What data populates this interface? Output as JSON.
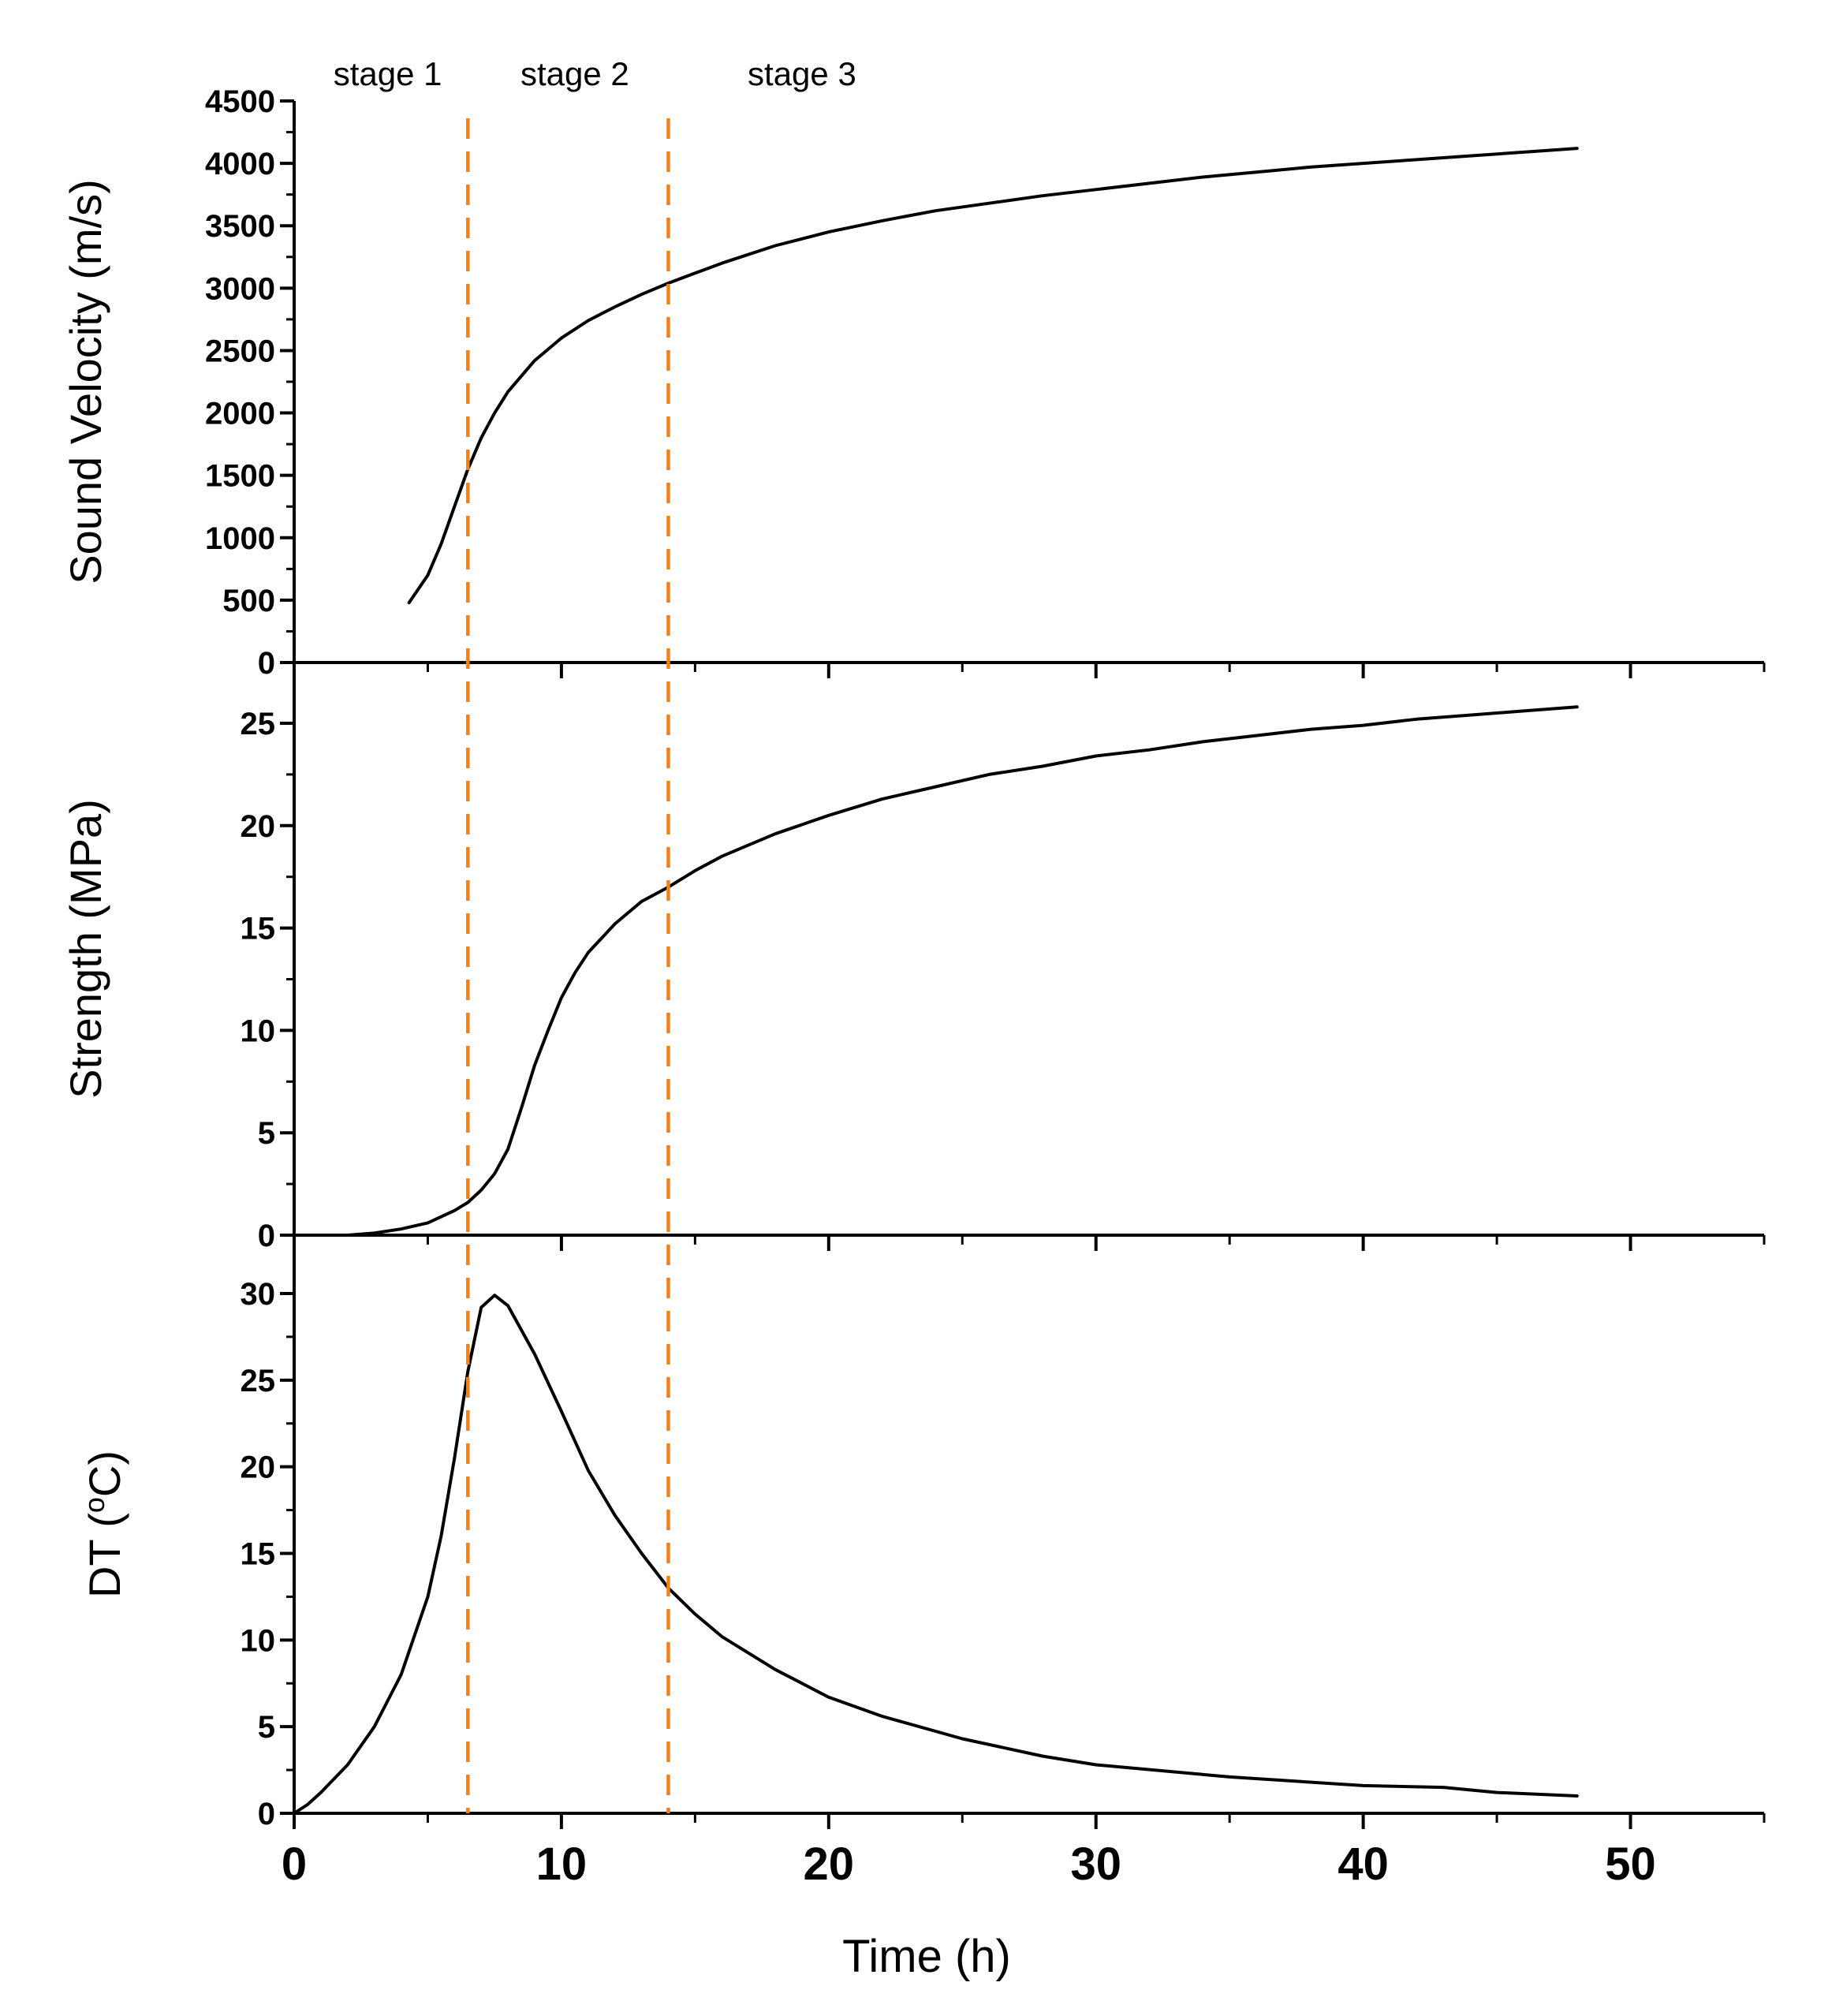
{
  "chart_data": {
    "type": "line",
    "x_shared": {
      "label": "Time (h)",
      "range": [
        0,
        55
      ],
      "ticks": [
        0,
        10,
        20,
        30,
        40,
        50
      ]
    },
    "stage_dividers": [
      {
        "x": 6.5,
        "color": "#ff7f0e"
      },
      {
        "x": 14,
        "color": "#ff7f0e"
      }
    ],
    "stage_labels": [
      {
        "text": "stage 1",
        "x": 3.5
      },
      {
        "text": "stage 2",
        "x": 10.5
      },
      {
        "text": "stage 3",
        "x": 19.0
      }
    ],
    "panels": [
      {
        "ylabel": "Sound Velocity (m/s)",
        "ylim": [
          0,
          4500
        ],
        "yticks": [
          0,
          500,
          1000,
          1500,
          2000,
          2500,
          3000,
          3500,
          4000,
          4500
        ],
        "series": [
          {
            "name": "Sound Velocity",
            "x": [
              4.3,
              5,
              5.5,
              6,
              6.5,
              7,
              7.5,
              8,
              9,
              10,
              11,
              12,
              13,
              14,
              15,
              16,
              18,
              20,
              22,
              24,
              26,
              28,
              30,
              32,
              34,
              36,
              38,
              40,
              42,
              44,
              46,
              48
            ],
            "y": [
              480,
              700,
              950,
              1250,
              1550,
              1800,
              2000,
              2170,
              2420,
              2600,
              2740,
              2850,
              2950,
              3040,
              3120,
              3200,
              3340,
              3450,
              3540,
              3620,
              3680,
              3740,
              3790,
              3840,
              3890,
              3930,
              3970,
              4000,
              4030,
              4060,
              4090,
              4120
            ]
          }
        ]
      },
      {
        "ylabel": "Strength (MPa)",
        "ylim": [
          0,
          27
        ],
        "yticks": [
          0,
          5,
          10,
          15,
          20,
          25
        ],
        "series": [
          {
            "name": "Strength",
            "x": [
              2,
              3,
              4,
              5,
              6,
              6.5,
              7,
              7.5,
              8,
              8.5,
              9,
              9.5,
              10,
              10.5,
              11,
              12,
              13,
              14,
              15,
              16,
              18,
              20,
              22,
              24,
              26,
              28,
              30,
              32,
              34,
              36,
              38,
              40,
              42,
              44,
              46,
              48
            ],
            "y": [
              0,
              0.1,
              0.3,
              0.6,
              1.2,
              1.6,
              2.2,
              3.0,
              4.2,
              6.2,
              8.3,
              10.0,
              11.6,
              12.8,
              13.8,
              15.2,
              16.3,
              17.0,
              17.8,
              18.5,
              19.6,
              20.5,
              21.3,
              21.9,
              22.5,
              22.9,
              23.4,
              23.7,
              24.1,
              24.4,
              24.7,
              24.9,
              25.2,
              25.4,
              25.6,
              25.8
            ]
          }
        ]
      },
      {
        "ylabel": "DT (°C)",
        "ylabel_parts": [
          "DT (",
          "o",
          "C)"
        ],
        "ylim": [
          0,
          32
        ],
        "yticks": [
          0,
          5,
          10,
          15,
          20,
          25,
          30
        ],
        "series": [
          {
            "name": "DT",
            "x": [
              0,
              0.5,
              1,
              2,
              3,
              4,
              5,
              5.5,
              6,
              6.5,
              7,
              7.5,
              8,
              9,
              10,
              11,
              12,
              13,
              14,
              15,
              16,
              18,
              20,
              22,
              25,
              28,
              30,
              35,
              40,
              43,
              45,
              48
            ],
            "y": [
              0,
              0.5,
              1.2,
              2.8,
              5,
              8,
              12.5,
              16,
              20.5,
              25.5,
              29.2,
              29.9,
              29.3,
              26.5,
              23.2,
              19.8,
              17.2,
              15,
              13.0,
              11.5,
              10.2,
              8.3,
              6.7,
              5.6,
              4.3,
              3.3,
              2.8,
              2.1,
              1.6,
              1.5,
              1.2,
              1.0
            ]
          }
        ]
      }
    ]
  }
}
